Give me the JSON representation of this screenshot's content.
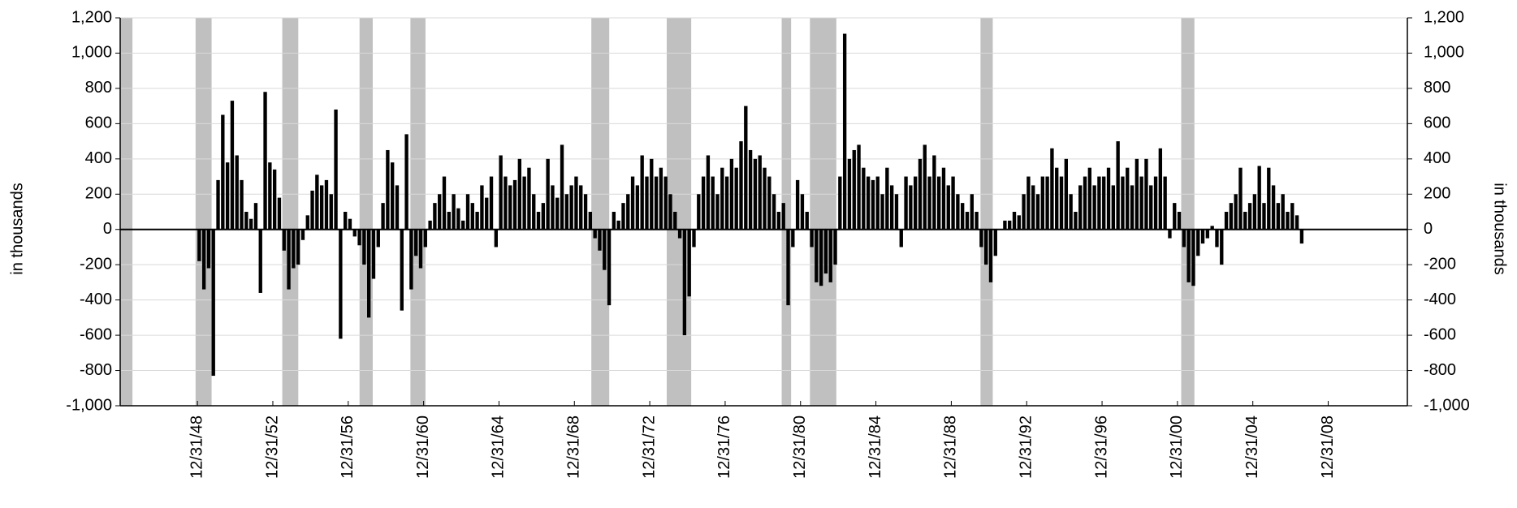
{
  "chart_data": {
    "type": "bar",
    "y_label": "in thousands",
    "y2_label": "in thousands",
    "xlim": [
      1944.9,
      2013.2
    ],
    "xticks": [
      {
        "value": 1949,
        "label": "12/31/48"
      },
      {
        "value": 1953,
        "label": "12/31/52"
      },
      {
        "value": 1957,
        "label": "12/31/56"
      },
      {
        "value": 1961,
        "label": "12/31/60"
      },
      {
        "value": 1965,
        "label": "12/31/64"
      },
      {
        "value": 1969,
        "label": "12/31/68"
      },
      {
        "value": 1973,
        "label": "12/31/72"
      },
      {
        "value": 1977,
        "label": "12/31/76"
      },
      {
        "value": 1981,
        "label": "12/31/80"
      },
      {
        "value": 1985,
        "label": "12/31/84"
      },
      {
        "value": 1989,
        "label": "12/31/88"
      },
      {
        "value": 1993,
        "label": "12/31/92"
      },
      {
        "value": 1997,
        "label": "12/31/96"
      },
      {
        "value": 2001,
        "label": "12/31/00"
      },
      {
        "value": 2005,
        "label": "12/31/04"
      },
      {
        "value": 2009,
        "label": "12/31/08"
      }
    ],
    "ylim": [
      -1000,
      1200
    ],
    "yticks": [
      {
        "value": -1000,
        "label": "-1,000"
      },
      -800,
      -600,
      -400,
      -200,
      0,
      200,
      400,
      600,
      800,
      {
        "value": 1000,
        "label": "1,000"
      },
      {
        "value": 1200,
        "label": "1,200"
      }
    ],
    "y2lim": [
      -1000,
      1200
    ],
    "y2ticks": [
      {
        "value": -1000,
        "label": "-1,000"
      },
      -800,
      -600,
      -400,
      -200,
      0,
      200,
      400,
      600,
      800,
      {
        "value": 1000,
        "label": "1,000"
      },
      {
        "value": 1200,
        "label": "1,200"
      }
    ],
    "grid": true,
    "color": "#000000",
    "shade_color": "#c0c0c0",
    "shaded_periods": [
      [
        1944.9,
        1945.55
      ],
      [
        1948.9,
        1949.75
      ],
      [
        1953.5,
        1954.35
      ],
      [
        1957.6,
        1958.3
      ],
      [
        1960.3,
        1961.1
      ],
      [
        1969.9,
        1970.85
      ],
      [
        1973.9,
        1975.2
      ],
      [
        1980.0,
        1980.5
      ],
      [
        1981.5,
        1982.9
      ],
      [
        1990.55,
        1991.2
      ],
      [
        2001.2,
        2001.9
      ]
    ],
    "x": [
      1949,
      1949.25,
      1949.5,
      1949.75,
      1950,
      1950.25,
      1950.5,
      1950.75,
      1951,
      1951.25,
      1951.5,
      1951.75,
      1952,
      1952.25,
      1952.5,
      1952.75,
      1953,
      1953.25,
      1953.5,
      1953.75,
      1954,
      1954.25,
      1954.5,
      1954.75,
      1955,
      1955.25,
      1955.5,
      1955.75,
      1956,
      1956.25,
      1956.5,
      1956.75,
      1957,
      1957.25,
      1957.5,
      1957.75,
      1958,
      1958.25,
      1958.5,
      1958.75,
      1959,
      1959.25,
      1959.5,
      1959.75,
      1960,
      1960.25,
      1960.5,
      1960.75,
      1961,
      1961.25,
      1961.5,
      1961.75,
      1962,
      1962.25,
      1962.5,
      1962.75,
      1963,
      1963.25,
      1963.5,
      1963.75,
      1964,
      1964.25,
      1964.5,
      1964.75,
      1965,
      1965.25,
      1965.5,
      1965.75,
      1966,
      1966.25,
      1966.5,
      1966.75,
      1967,
      1967.25,
      1967.5,
      1967.75,
      1968,
      1968.25,
      1968.5,
      1968.75,
      1969,
      1969.25,
      1969.5,
      1969.75,
      1970,
      1970.25,
      1970.5,
      1970.75,
      1971,
      1971.25,
      1971.5,
      1971.75,
      1972,
      1972.25,
      1972.5,
      1972.75,
      1973,
      1973.25,
      1973.5,
      1973.75,
      1974,
      1974.25,
      1974.5,
      1974.75,
      1975,
      1975.25,
      1975.5,
      1975.75,
      1976,
      1976.25,
      1976.5,
      1976.75,
      1977,
      1977.25,
      1977.5,
      1977.75,
      1978,
      1978.25,
      1978.5,
      1978.75,
      1979,
      1979.25,
      1979.5,
      1979.75,
      1980,
      1980.25,
      1980.5,
      1980.75,
      1981,
      1981.25,
      1981.5,
      1981.75,
      1982,
      1982.25,
      1982.5,
      1982.75,
      1983,
      1983.25,
      1983.5,
      1983.75,
      1984,
      1984.25,
      1984.5,
      1984.75,
      1985,
      1985.25,
      1985.5,
      1985.75,
      1986,
      1986.25,
      1986.5,
      1986.75,
      1987,
      1987.25,
      1987.5,
      1987.75,
      1988,
      1988.25,
      1988.5,
      1988.75,
      1989,
      1989.25,
      1989.5,
      1989.75,
      1990,
      1990.25,
      1990.5,
      1990.75,
      1991,
      1991.25,
      1991.5,
      1991.75,
      1992,
      1992.25,
      1992.5,
      1992.75,
      1993,
      1993.25,
      1993.5,
      1993.75,
      1994,
      1994.25,
      1994.5,
      1994.75,
      1995,
      1995.25,
      1995.5,
      1995.75,
      1996,
      1996.25,
      1996.5,
      1996.75,
      1997,
      1997.25,
      1997.5,
      1997.75,
      1998,
      1998.25,
      1998.5,
      1998.75,
      1999,
      1999.25,
      1999.5,
      1999.75,
      2000,
      2000.25,
      2000.5,
      2000.75,
      2001,
      2001.25,
      2001.5,
      2001.75,
      2002,
      2002.25,
      2002.5,
      2002.75,
      2003,
      2003.25,
      2003.5,
      2003.75,
      2004,
      2004.25,
      2004.5,
      2004.75,
      2005,
      2005.25,
      2005.5,
      2005.75,
      2006,
      2006.25,
      2006.5,
      2006.75,
      2007,
      2007.25,
      2007.5
    ],
    "values": [
      -180,
      -340,
      -220,
      -830,
      280,
      650,
      380,
      730,
      420,
      280,
      100,
      60,
      150,
      -360,
      780,
      380,
      340,
      180,
      -120,
      -340,
      -220,
      -200,
      -60,
      80,
      220,
      310,
      250,
      280,
      200,
      680,
      -620,
      100,
      60,
      -40,
      -90,
      -200,
      -500,
      -280,
      -100,
      150,
      450,
      380,
      250,
      -460,
      540,
      -340,
      -150,
      -220,
      -100,
      50,
      150,
      200,
      300,
      100,
      200,
      120,
      50,
      200,
      150,
      100,
      250,
      180,
      300,
      -100,
      420,
      300,
      250,
      280,
      400,
      300,
      350,
      200,
      100,
      150,
      400,
      250,
      180,
      480,
      200,
      250,
      300,
      250,
      200,
      100,
      -50,
      -120,
      -230,
      -430,
      100,
      50,
      150,
      200,
      300,
      250,
      420,
      300,
      400,
      300,
      350,
      300,
      200,
      100,
      -50,
      -600,
      -380,
      -100,
      200,
      300,
      420,
      300,
      200,
      350,
      300,
      400,
      350,
      500,
      700,
      450,
      400,
      420,
      350,
      300,
      200,
      100,
      150,
      -430,
      -100,
      280,
      200,
      100,
      -100,
      -300,
      -320,
      -250,
      -300,
      -200,
      300,
      1110,
      400,
      450,
      480,
      350,
      300,
      280,
      300,
      200,
      350,
      250,
      200,
      -100,
      300,
      250,
      300,
      400,
      480,
      300,
      420,
      300,
      350,
      250,
      300,
      200,
      150,
      100,
      200,
      100,
      -100,
      -200,
      -300,
      -150,
      0,
      50,
      50,
      100,
      80,
      200,
      300,
      250,
      200,
      300,
      300,
      460,
      350,
      300,
      400,
      200,
      100,
      250,
      300,
      350,
      250,
      300,
      300,
      350,
      250,
      500,
      300,
      350,
      250,
      400,
      300,
      400,
      250,
      300,
      460,
      300,
      -50,
      150,
      100,
      -100,
      -300,
      -320,
      -150,
      -80,
      -50,
      20,
      -100,
      -200,
      100,
      150,
      200,
      350,
      100,
      150,
      200,
      360,
      150,
      350,
      250,
      150,
      200,
      100,
      150,
      80,
      -80
    ]
  }
}
